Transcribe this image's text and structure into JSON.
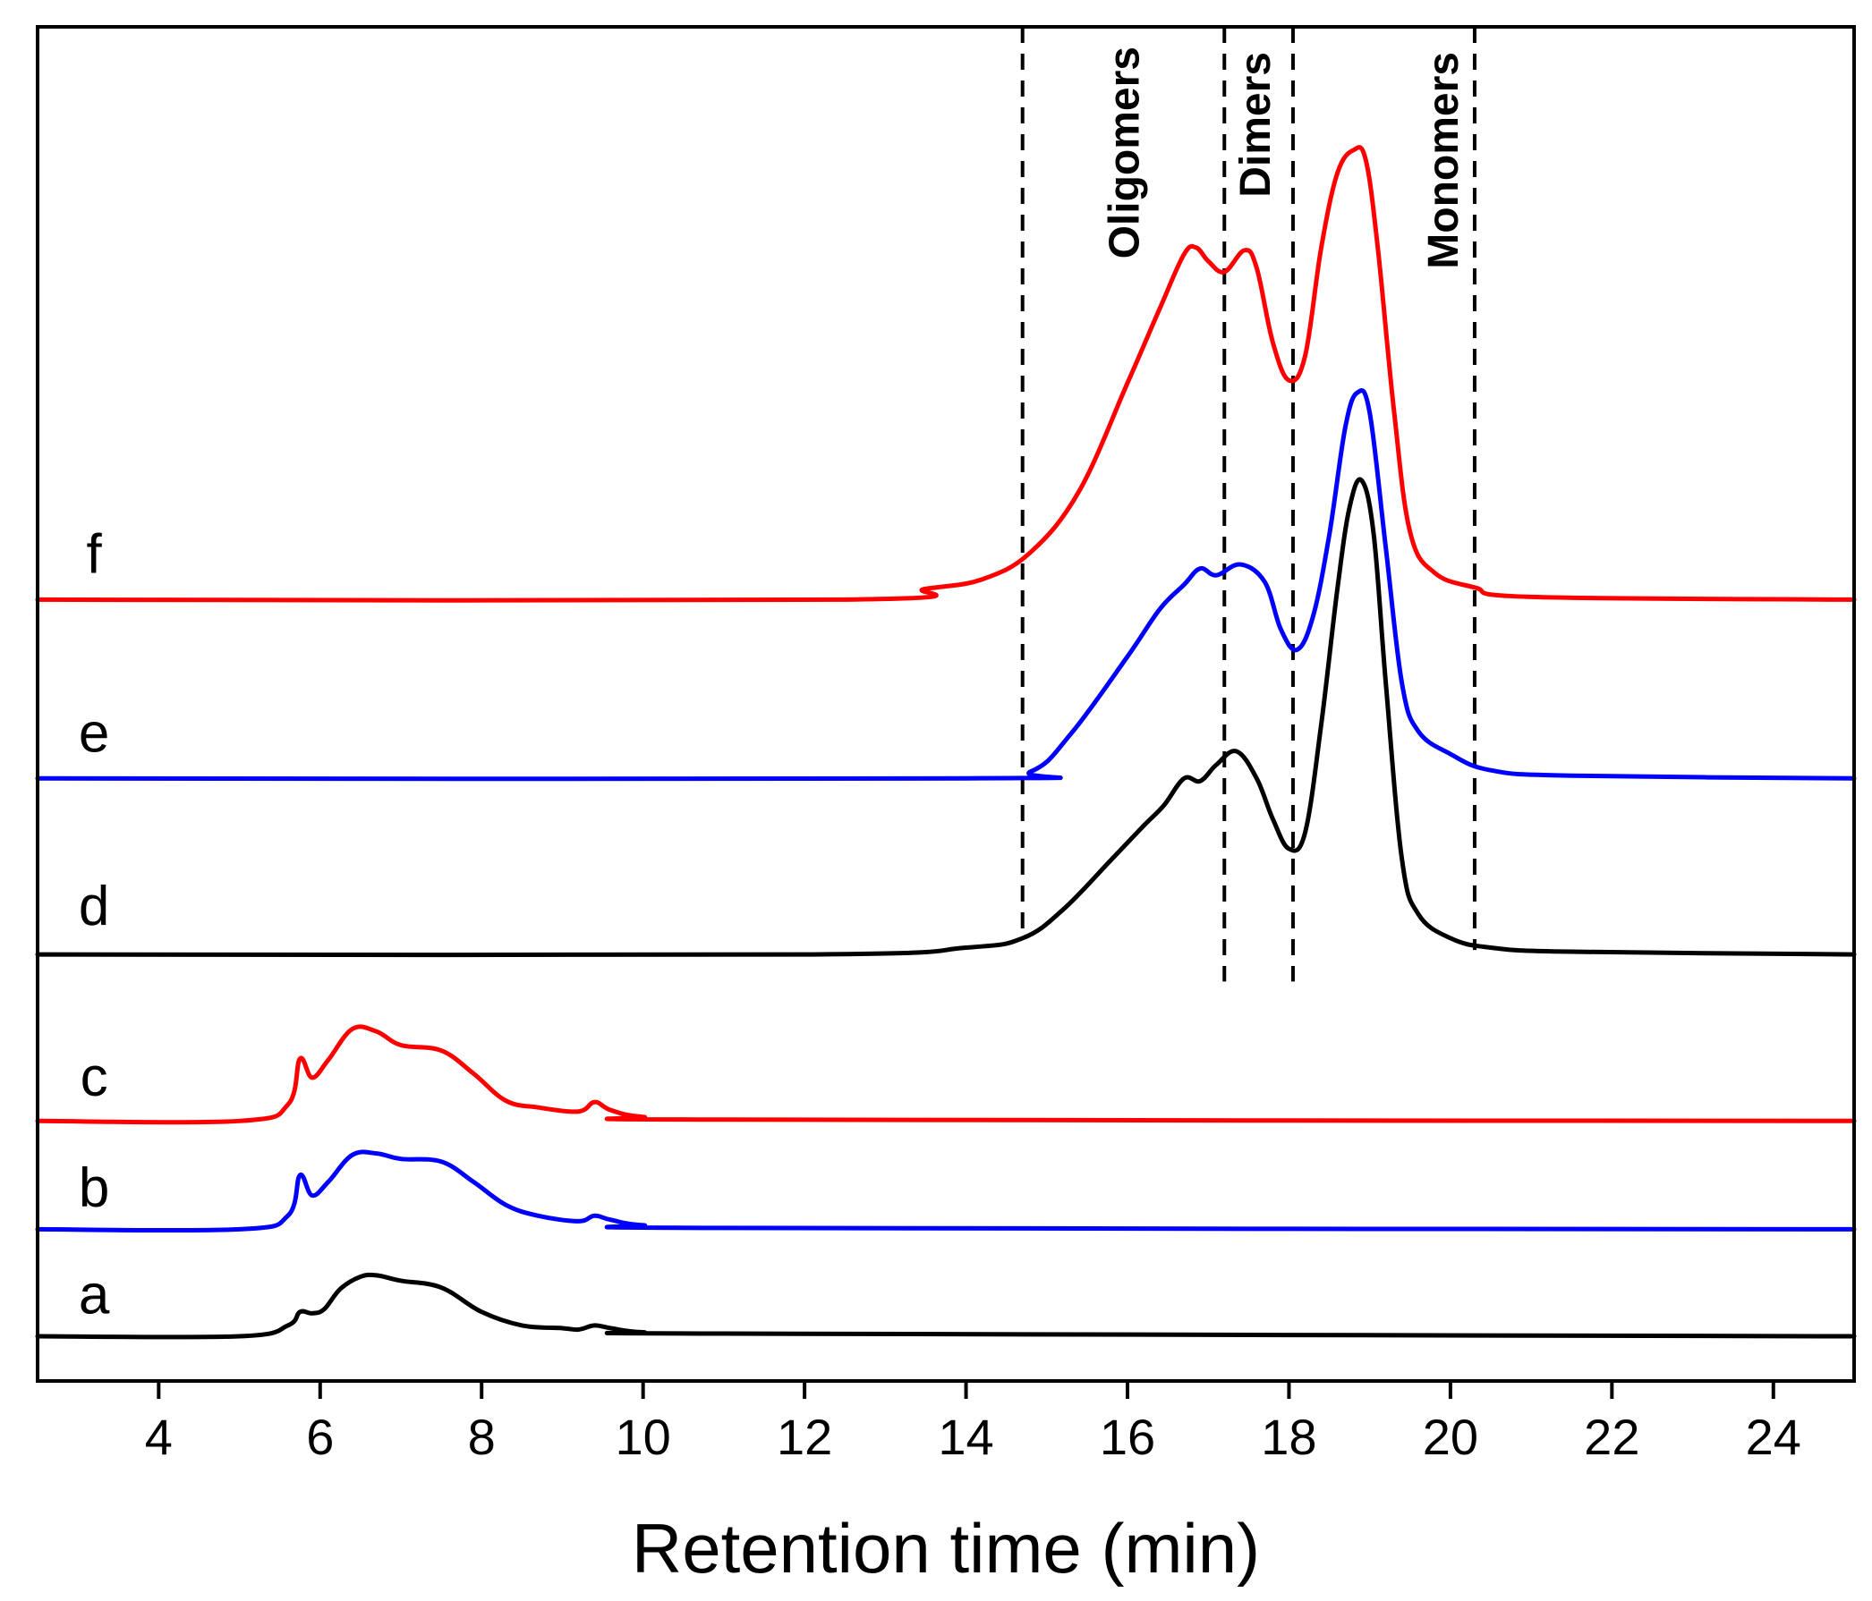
{
  "chart_data": {
    "type": "line",
    "title": "",
    "xlabel": "Retention time (min)",
    "ylabel": "",
    "xlim": [
      2.5,
      25
    ],
    "xticks": [
      4,
      6,
      8,
      10,
      12,
      14,
      16,
      18,
      20,
      22,
      24
    ],
    "xtick_labels": [
      "4",
      "6",
      "8",
      "10",
      "12",
      "14",
      "16",
      "18",
      "20",
      "22",
      "24"
    ],
    "yticks": [],
    "ylim": [
      0,
      10
    ],
    "grid": false,
    "vlines": [
      14.7,
      17.2,
      18.05,
      20.3
    ],
    "regions": [
      {
        "label": "Oligomers",
        "x": 16.0
      },
      {
        "label": "Dimers",
        "x": 17.62
      },
      {
        "label": "Monomers",
        "x": 19.95
      }
    ],
    "series": [
      {
        "name": "a",
        "color": "#000000",
        "baseline": 0.33,
        "points": [
          [
            2.5,
            0
          ],
          [
            5,
            0
          ],
          [
            5.6,
            0.08
          ],
          [
            5.75,
            0.18
          ],
          [
            5.9,
            0.17
          ],
          [
            6.05,
            0.2
          ],
          [
            6.25,
            0.35
          ],
          [
            6.5,
            0.44
          ],
          [
            6.7,
            0.45
          ],
          [
            7,
            0.41
          ],
          [
            7.5,
            0.36
          ],
          [
            8,
            0.18
          ],
          [
            8.5,
            0.08
          ],
          [
            9,
            0.06
          ],
          [
            9.2,
            0.05
          ],
          [
            9.4,
            0.08
          ],
          [
            9.6,
            0.06
          ],
          [
            10,
            0.03
          ],
          [
            11,
            0.02
          ],
          [
            25,
            0
          ]
        ]
      },
      {
        "name": "b",
        "color": "#0000ff",
        "baseline": 1.12,
        "points": [
          [
            2.5,
            0
          ],
          [
            5,
            0
          ],
          [
            5.6,
            0.1
          ],
          [
            5.75,
            0.4
          ],
          [
            5.9,
            0.25
          ],
          [
            6.1,
            0.35
          ],
          [
            6.4,
            0.55
          ],
          [
            6.7,
            0.56
          ],
          [
            7,
            0.52
          ],
          [
            7.5,
            0.5
          ],
          [
            7.9,
            0.35
          ],
          [
            8.3,
            0.18
          ],
          [
            8.7,
            0.1
          ],
          [
            9.2,
            0.06
          ],
          [
            9.4,
            0.1
          ],
          [
            9.6,
            0.07
          ],
          [
            10,
            0.03
          ],
          [
            11,
            0.01
          ],
          [
            25,
            0
          ]
        ]
      },
      {
        "name": "c",
        "color": "#ff0000",
        "baseline": 1.92,
        "points": [
          [
            2.5,
            0
          ],
          [
            5,
            0
          ],
          [
            5.6,
            0.12
          ],
          [
            5.75,
            0.46
          ],
          [
            5.9,
            0.32
          ],
          [
            6.1,
            0.45
          ],
          [
            6.4,
            0.68
          ],
          [
            6.7,
            0.66
          ],
          [
            7,
            0.56
          ],
          [
            7.5,
            0.52
          ],
          [
            7.9,
            0.35
          ],
          [
            8.3,
            0.15
          ],
          [
            8.7,
            0.1
          ],
          [
            9.2,
            0.07
          ],
          [
            9.4,
            0.14
          ],
          [
            9.6,
            0.08
          ],
          [
            10,
            0.03
          ],
          [
            11,
            0.01
          ],
          [
            25,
            0
          ]
        ]
      },
      {
        "name": "d",
        "color": "#000000",
        "baseline": 3.15,
        "points": [
          [
            2.5,
            0
          ],
          [
            12,
            0
          ],
          [
            14,
            0.05
          ],
          [
            14.7,
            0.12
          ],
          [
            15.2,
            0.33
          ],
          [
            15.8,
            0.7
          ],
          [
            16.2,
            0.95
          ],
          [
            16.45,
            1.1
          ],
          [
            16.7,
            1.3
          ],
          [
            16.9,
            1.28
          ],
          [
            17.1,
            1.4
          ],
          [
            17.35,
            1.5
          ],
          [
            17.6,
            1.3
          ],
          [
            17.8,
            1.0
          ],
          [
            18.0,
            0.78
          ],
          [
            18.2,
            0.9
          ],
          [
            18.4,
            1.7
          ],
          [
            18.6,
            2.7
          ],
          [
            18.75,
            3.3
          ],
          [
            18.9,
            3.5
          ],
          [
            19.05,
            3.1
          ],
          [
            19.2,
            2.0
          ],
          [
            19.4,
            0.7
          ],
          [
            19.6,
            0.3
          ],
          [
            20.0,
            0.12
          ],
          [
            20.5,
            0.05
          ],
          [
            21.5,
            0.02
          ],
          [
            25,
            0
          ]
        ]
      },
      {
        "name": "e",
        "color": "#0000ff",
        "baseline": 4.45,
        "points": [
          [
            2.5,
            0
          ],
          [
            14,
            0
          ],
          [
            14.8,
            0.05
          ],
          [
            15.3,
            0.33
          ],
          [
            16.0,
            0.9
          ],
          [
            16.4,
            1.25
          ],
          [
            16.7,
            1.43
          ],
          [
            16.9,
            1.55
          ],
          [
            17.1,
            1.5
          ],
          [
            17.4,
            1.58
          ],
          [
            17.7,
            1.45
          ],
          [
            17.9,
            1.1
          ],
          [
            18.1,
            0.95
          ],
          [
            18.3,
            1.2
          ],
          [
            18.5,
            1.8
          ],
          [
            18.7,
            2.6
          ],
          [
            18.85,
            2.85
          ],
          [
            19.0,
            2.7
          ],
          [
            19.2,
            1.7
          ],
          [
            19.4,
            0.7
          ],
          [
            19.6,
            0.35
          ],
          [
            20.0,
            0.18
          ],
          [
            20.5,
            0.06
          ],
          [
            21.5,
            0.02
          ],
          [
            25,
            0
          ]
        ]
      },
      {
        "name": "f",
        "color": "#ff0000",
        "baseline": 5.77,
        "points": [
          [
            2.5,
            0
          ],
          [
            12.5,
            0
          ],
          [
            13.5,
            0.08
          ],
          [
            14.2,
            0.15
          ],
          [
            14.8,
            0.35
          ],
          [
            15.4,
            0.8
          ],
          [
            16.0,
            1.6
          ],
          [
            16.4,
            2.15
          ],
          [
            16.7,
            2.55
          ],
          [
            16.85,
            2.6
          ],
          [
            17.0,
            2.5
          ],
          [
            17.2,
            2.42
          ],
          [
            17.45,
            2.58
          ],
          [
            17.6,
            2.45
          ],
          [
            17.8,
            1.9
          ],
          [
            18.0,
            1.62
          ],
          [
            18.2,
            1.8
          ],
          [
            18.4,
            2.6
          ],
          [
            18.6,
            3.15
          ],
          [
            18.8,
            3.32
          ],
          [
            18.95,
            3.25
          ],
          [
            19.1,
            2.6
          ],
          [
            19.3,
            1.4
          ],
          [
            19.5,
            0.5
          ],
          [
            19.8,
            0.2
          ],
          [
            20.3,
            0.09
          ],
          [
            21,
            0.02
          ],
          [
            25,
            0
          ]
        ]
      }
    ],
    "labels": [
      {
        "name": "a",
        "text": "a",
        "x": 3.2,
        "y": 0.63
      },
      {
        "name": "b",
        "text": "b",
        "x": 3.2,
        "y": 1.42
      },
      {
        "name": "c",
        "text": "c",
        "x": 3.2,
        "y": 2.24
      },
      {
        "name": "d",
        "text": "d",
        "x": 3.2,
        "y": 3.5
      },
      {
        "name": "e",
        "text": "e",
        "x": 3.2,
        "y": 4.78
      },
      {
        "name": "f",
        "text": "f",
        "x": 3.2,
        "y": 6.1
      }
    ]
  }
}
